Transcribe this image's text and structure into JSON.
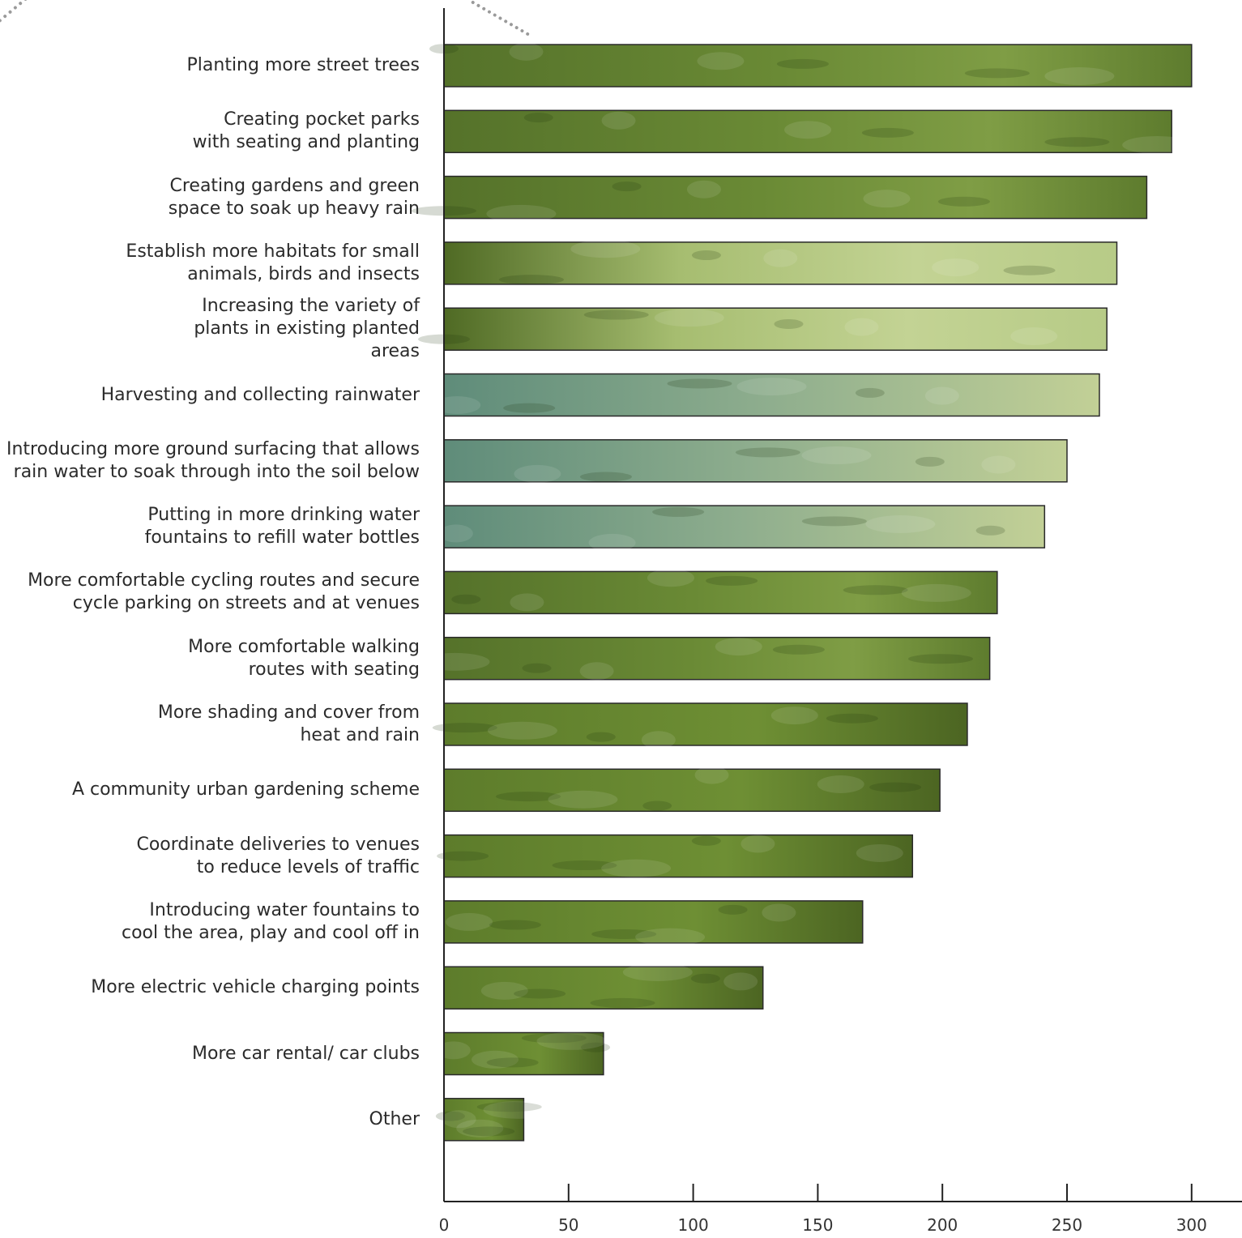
{
  "colors": {
    "bar_dark": "#4f6a24",
    "bar_mid": "#6f8f3a",
    "bar_light": "#b9cc86",
    "bar_teal": "#6f9a8a",
    "axis": "#222222",
    "decor_dots": "#9a9a9a"
  },
  "chart_data": {
    "type": "bar",
    "orientation": "horizontal",
    "categories": [
      [
        "Planting more street trees"
      ],
      [
        "Creating pocket parks",
        "with seating and planting"
      ],
      [
        "Creating gardens and green",
        "space to soak up heavy rain"
      ],
      [
        "Establish more habitats for small",
        "animals, birds and insects"
      ],
      [
        "Increasing the variety of",
        "plants in existing planted",
        "areas"
      ],
      [
        "Harvesting and collecting rainwater"
      ],
      [
        "Introducing more ground surfacing that allows",
        "rain water to soak through into the soil below"
      ],
      [
        "Putting in more drinking water",
        "fountains to refill water bottles"
      ],
      [
        "More comfortable cycling routes and secure",
        "cycle parking on streets and at venues"
      ],
      [
        "More comfortable walking",
        "routes with seating"
      ],
      [
        "More shading and cover from",
        "heat and rain"
      ],
      [
        "A community urban gardening scheme"
      ],
      [
        "Coordinate deliveries to venues",
        "to reduce levels of traffic"
      ],
      [
        "Introducing water fountains to",
        "cool the area, play and cool off in"
      ],
      [
        "More electric vehicle charging points"
      ],
      [
        "More car rental/ car clubs"
      ],
      [
        "Other"
      ]
    ],
    "values": [
      300,
      292,
      282,
      270,
      266,
      263,
      250,
      241,
      222,
      219,
      210,
      199,
      188,
      168,
      128,
      64,
      32
    ],
    "xticks": [
      "0",
      "50",
      "100",
      "150",
      "200",
      "250",
      "300"
    ],
    "xlim": [
      0,
      320
    ],
    "title": "",
    "xlabel": "",
    "ylabel": "",
    "grid": false,
    "legend": "none"
  }
}
